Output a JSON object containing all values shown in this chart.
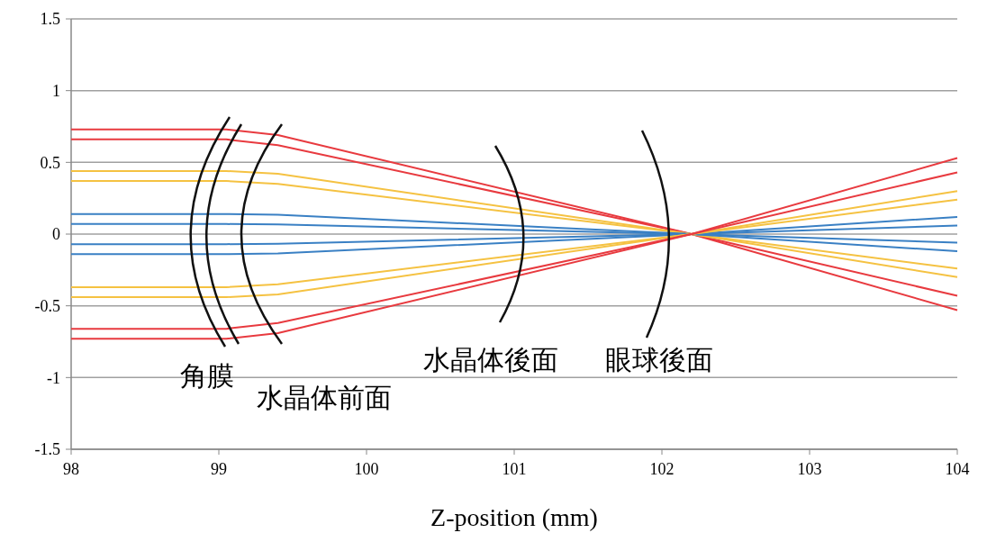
{
  "chart_data": {
    "type": "line",
    "xlabel": "Z-position (mm)",
    "xlim": [
      98,
      104
    ],
    "xticks": [
      98,
      99,
      100,
      101,
      102,
      103,
      104
    ],
    "ylim": [
      -1.5,
      1.5
    ],
    "yticks": [
      -1.5,
      -1,
      -0.5,
      0,
      0.5,
      1,
      1.5
    ],
    "grid": "y",
    "line_style": "solid",
    "annotations": [
      "角膜",
      "水晶体前面",
      "水晶体後面",
      "眼球後面"
    ],
    "series": [
      {
        "color": "#e83a3f",
        "x": [
          98,
          99.05,
          99.4,
          102.2,
          104
        ],
        "values": [
          0.73,
          0.73,
          0.69,
          0,
          -0.53
        ]
      },
      {
        "color": "#e83a3f",
        "x": [
          98,
          99.05,
          99.4,
          102.2,
          104
        ],
        "values": [
          0.66,
          0.66,
          0.62,
          0,
          -0.43
        ]
      },
      {
        "color": "#f5c242",
        "x": [
          98,
          99.05,
          99.4,
          102.2,
          104
        ],
        "values": [
          0.44,
          0.44,
          0.42,
          0,
          -0.3
        ]
      },
      {
        "color": "#f5c242",
        "x": [
          98,
          99.05,
          99.4,
          102.2,
          104
        ],
        "values": [
          0.37,
          0.37,
          0.35,
          0,
          -0.24
        ]
      },
      {
        "color": "#3a80c4",
        "x": [
          98,
          99.05,
          99.4,
          102.2,
          104
        ],
        "values": [
          0.14,
          0.14,
          0.135,
          0,
          -0.12
        ]
      },
      {
        "color": "#3a80c4",
        "x": [
          98,
          99.05,
          99.4,
          102.2,
          104
        ],
        "values": [
          0.07,
          0.07,
          0.067,
          0,
          -0.06
        ]
      },
      {
        "color": "#3a80c4",
        "x": [
          98,
          99.05,
          99.4,
          102.2,
          104
        ],
        "values": [
          -0.07,
          -0.07,
          -0.067,
          0,
          0.06
        ]
      },
      {
        "color": "#3a80c4",
        "x": [
          98,
          99.05,
          99.4,
          102.2,
          104
        ],
        "values": [
          -0.14,
          -0.14,
          -0.135,
          0,
          0.12
        ]
      },
      {
        "color": "#f5c242",
        "x": [
          98,
          99.05,
          99.4,
          102.2,
          104
        ],
        "values": [
          -0.37,
          -0.37,
          -0.35,
          0,
          0.24
        ]
      },
      {
        "color": "#f5c242",
        "x": [
          98,
          99.05,
          99.4,
          102.2,
          104
        ],
        "values": [
          -0.44,
          -0.44,
          -0.42,
          0,
          0.3
        ]
      },
      {
        "color": "#e83a3f",
        "x": [
          98,
          99.05,
          99.4,
          102.2,
          104
        ],
        "values": [
          -0.66,
          -0.66,
          -0.62,
          0,
          0.43
        ]
      },
      {
        "color": "#e83a3f",
        "x": [
          98,
          99.05,
          99.4,
          102.2,
          104
        ],
        "values": [
          -0.73,
          -0.73,
          -0.69,
          0,
          0.53
        ]
      }
    ]
  }
}
